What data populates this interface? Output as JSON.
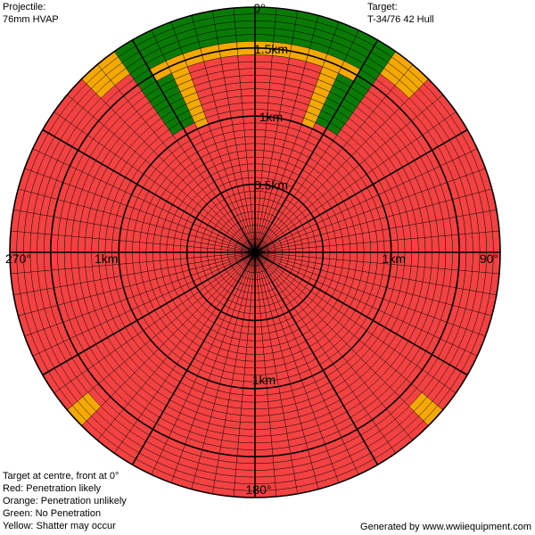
{
  "projectile": {
    "label": "Projectile:",
    "value": "76mm HVAP"
  },
  "target": {
    "label": "Target:",
    "value": "T-34/76 42 Hull"
  },
  "legend": [
    {
      "text": "Target at centre, front at 0°",
      "color": ""
    },
    {
      "text": "Red: Penetration likely",
      "color": "#f44141"
    },
    {
      "text": "Orange: Penetration unlikely",
      "color": "#f5a800"
    },
    {
      "text": "Green: No Penetration",
      "color": "#0a7a07"
    },
    {
      "text": "Yellow: Shatter may occur",
      "color": "#ffff00"
    }
  ],
  "credit": "Generated by www.wwiiequipment.com",
  "colors": {
    "red": "#f44141",
    "orange": "#f5a800",
    "green": "#0a7a07",
    "line": "#000000"
  },
  "chart_data": {
    "type": "polar-heatmap",
    "range_km": 1.8,
    "angle_labels": {
      "top": "0°",
      "right": "90°",
      "bottom": "180°",
      "left": "270°"
    },
    "ring_labels": {
      "north": [
        "0.5km",
        "1km",
        "1.5km"
      ],
      "east": [
        "1km"
      ],
      "south": [
        "1km"
      ],
      "west": [
        "1km"
      ]
    },
    "zones": [
      {
        "result": "No Penetration",
        "color": "green",
        "bearing_from_deg": 325,
        "bearing_to_deg": 35,
        "range_from_km": 1.5,
        "range_to_km": 1.8
      },
      {
        "result": "No Penetration",
        "color": "green",
        "bearing_from_deg": 325,
        "bearing_to_deg": 337,
        "range_from_km": 1.05,
        "range_to_km": 1.8
      },
      {
        "result": "No Penetration",
        "color": "green",
        "bearing_from_deg": 23,
        "bearing_to_deg": 35,
        "range_from_km": 1.05,
        "range_to_km": 1.8
      },
      {
        "result": "Penetration unlikely",
        "color": "orange",
        "bearing_from_deg": 330,
        "bearing_to_deg": 30,
        "range_from_km": 1.45,
        "range_to_km": 1.55
      },
      {
        "result": "Penetration unlikely",
        "color": "orange",
        "bearing_from_deg": 20,
        "bearing_to_deg": 27,
        "range_from_km": 1.0,
        "range_to_km": 1.5
      },
      {
        "result": "Penetration unlikely",
        "color": "orange",
        "bearing_from_deg": 333,
        "bearing_to_deg": 340,
        "range_from_km": 1.0,
        "range_to_km": 1.5
      },
      {
        "result": "Penetration unlikely",
        "color": "orange",
        "bearing_from_deg": 36,
        "bearing_to_deg": 44,
        "range_from_km": 1.6,
        "range_to_km": 1.8
      },
      {
        "result": "Penetration unlikely",
        "color": "orange",
        "bearing_from_deg": 316,
        "bearing_to_deg": 324,
        "range_from_km": 1.6,
        "range_to_km": 1.8
      },
      {
        "result": "Penetration unlikely",
        "color": "orange",
        "bearing_from_deg": 132,
        "bearing_to_deg": 136,
        "range_from_km": 1.62,
        "range_to_km": 1.8
      },
      {
        "result": "Penetration unlikely",
        "color": "orange",
        "bearing_from_deg": 224,
        "bearing_to_deg": 228,
        "range_from_km": 1.62,
        "range_to_km": 1.8
      }
    ],
    "default_result": "Penetration likely",
    "default_color": "red"
  }
}
